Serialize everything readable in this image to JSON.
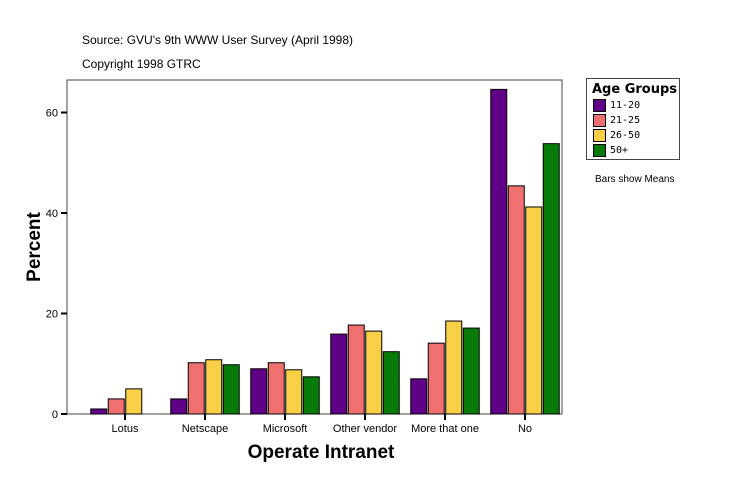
{
  "header": {
    "source": "Source: GVU's 9th WWW User Survey (April 1998)",
    "copyright": "Copyright 1998 GTRC"
  },
  "note": "Bars show Means",
  "chart_data": {
    "type": "bar",
    "xlabel": "Operate Intranet",
    "ylabel": "Percent",
    "ylim": [
      0,
      66
    ],
    "yticks": [
      0,
      20,
      40,
      60
    ],
    "grid": false,
    "legend_title": "Age Groups",
    "legend_position": "right",
    "categories": [
      "Lotus",
      "Netscape",
      "Microsoft",
      "Other vendor",
      "More that one",
      "No"
    ],
    "series": [
      {
        "name": "11-20",
        "color": "#5f0087",
        "values": [
          1.0,
          3.0,
          9.0,
          15.9,
          7.0,
          64.6
        ]
      },
      {
        "name": "21-25",
        "color": "#f07070",
        "values": [
          3.0,
          10.2,
          10.2,
          17.7,
          14.1,
          45.4
        ]
      },
      {
        "name": "26-50",
        "color": "#f8d048",
        "values": [
          5.0,
          10.8,
          8.8,
          16.5,
          18.5,
          41.2
        ]
      },
      {
        "name": "50+",
        "color": "#087a08",
        "values": [
          0,
          9.8,
          7.4,
          12.4,
          17.1,
          53.8
        ]
      }
    ]
  }
}
